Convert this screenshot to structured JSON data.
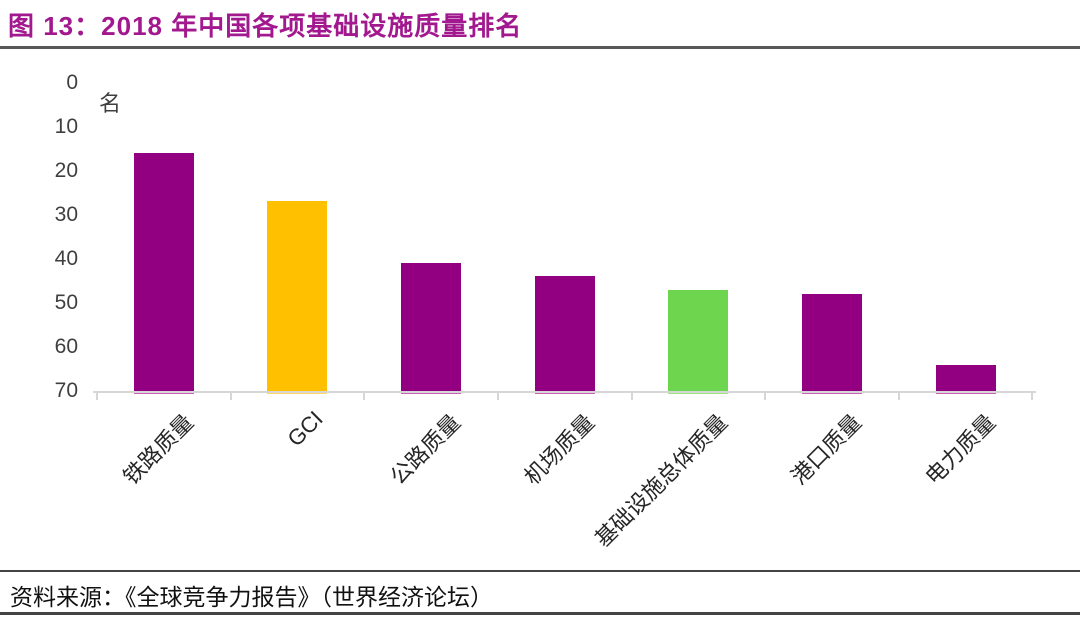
{
  "header": {
    "title": "图 13：2018 年中国各项基础设施质量排名"
  },
  "chart_data": {
    "type": "bar",
    "title": "2018 年中国各项基础设施质量排名",
    "unit_label": "名",
    "categories": [
      "铁路质量",
      "GCI",
      "公路质量",
      "机场质量",
      "基础设施总体质量",
      "港口质量",
      "电力质量"
    ],
    "values": [
      16,
      27,
      41,
      44,
      47,
      48,
      64
    ],
    "bar_colors": [
      "#920081",
      "#FFC000",
      "#920081",
      "#920081",
      "#6ED64E",
      "#920081",
      "#920081"
    ],
    "bar_edge_colors": [
      "#C95FB4",
      "#FFD768",
      "#C95FB4",
      "#C95FB4",
      "#9BE57F",
      "#C95FB4",
      "#C95FB4"
    ],
    "xlabel": "",
    "ylabel": "名",
    "y_axis": {
      "min": 0,
      "max": 70,
      "step": 10,
      "inverted": true,
      "tick_labels": [
        "0",
        "10",
        "20",
        "30",
        "40",
        "50",
        "60",
        "70"
      ]
    },
    "x_label_rotation_deg": 45,
    "grid": false,
    "legend": false
  },
  "footer": {
    "source": "资料来源：《全球竞争力报告》（世界经济论坛）"
  },
  "colors": {
    "title_text": "#A2188E",
    "title_rule": "#58585A",
    "axis_line": "#D6D6D6",
    "axis_text": "#3F3F3F",
    "category_text": "#262626",
    "footer_rule": "#434343"
  }
}
